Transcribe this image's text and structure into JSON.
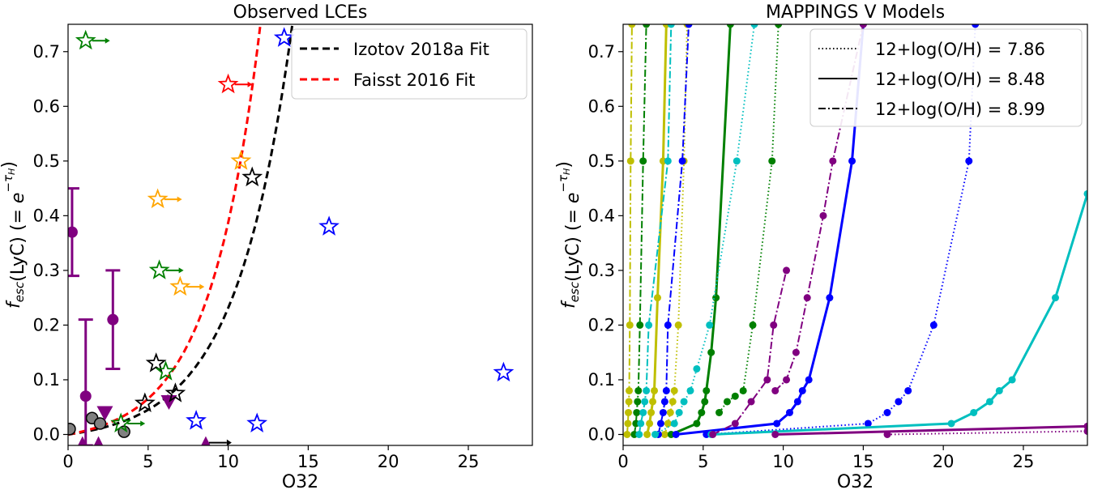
{
  "chart_data": [
    {
      "type": "scatter",
      "title": "Observed LCEs",
      "xlabel": "O32",
      "ylabel": "f_esc(LyC) (= e^-τH)",
      "xlim": [
        0,
        29
      ],
      "ylim": [
        -0.02,
        0.75
      ],
      "xticks": [
        "0",
        "5",
        "10",
        "15",
        "20",
        "25"
      ],
      "yticks": [
        "0.0",
        "0.1",
        "0.2",
        "0.3",
        "0.4",
        "0.5",
        "0.6",
        "0.7"
      ],
      "legend_position": "top-right",
      "fits": [
        {
          "name": "Izotov 2018a Fit",
          "color": "#000000",
          "form": "exp",
          "a": 0.0145,
          "b": 0.283
        },
        {
          "name": "Faisst 2016 Fit",
          "color": "#ff0000",
          "form": "exp",
          "a": 0.0168,
          "b": 0.318
        }
      ],
      "stars": [
        {
          "x": 1.1,
          "y": 0.72,
          "color": "#008000",
          "arrow": true
        },
        {
          "x": 10.0,
          "y": 0.64,
          "color": "#ff0000",
          "arrow": true
        },
        {
          "x": 13.5,
          "y": 0.725,
          "color": "#0000ff",
          "arrow": false
        },
        {
          "x": 10.8,
          "y": 0.5,
          "color": "#ffa500",
          "arrow": false
        },
        {
          "x": 11.5,
          "y": 0.47,
          "color": "#000000",
          "arrow": false
        },
        {
          "x": 5.6,
          "y": 0.43,
          "color": "#ffa500",
          "arrow": true
        },
        {
          "x": 16.3,
          "y": 0.38,
          "color": "#0000ff",
          "arrow": false
        },
        {
          "x": 5.7,
          "y": 0.3,
          "color": "#008000",
          "arrow": true
        },
        {
          "x": 7.0,
          "y": 0.27,
          "color": "#ffa500",
          "arrow": true
        },
        {
          "x": 5.5,
          "y": 0.13,
          "color": "#000000",
          "arrow": false
        },
        {
          "x": 6.1,
          "y": 0.115,
          "color": "#008000",
          "arrow": false
        },
        {
          "x": 6.7,
          "y": 0.075,
          "color": "#000000",
          "arrow": false
        },
        {
          "x": 4.8,
          "y": 0.057,
          "color": "#000000",
          "arrow": false
        },
        {
          "x": 3.3,
          "y": 0.02,
          "color": "#008000",
          "arrow": true
        },
        {
          "x": 8.0,
          "y": 0.025,
          "color": "#0000ff",
          "arrow": false
        },
        {
          "x": 11.8,
          "y": 0.02,
          "color": "#0000ff",
          "arrow": false
        },
        {
          "x": 27.2,
          "y": 0.113,
          "color": "#0000ff",
          "arrow": false
        }
      ],
      "gray_circles": [
        {
          "x": 0.1,
          "y": 0.01
        },
        {
          "x": 1.5,
          "y": 0.03
        },
        {
          "x": 2.0,
          "y": 0.02
        },
        {
          "x": 3.5,
          "y": 0.005
        }
      ],
      "purple_errorbars": [
        {
          "x": 0.25,
          "y": 0.37,
          "lo": 0.29,
          "hi": 0.45
        },
        {
          "x": 2.8,
          "y": 0.21,
          "lo": 0.12,
          "hi": 0.3
        },
        {
          "x": 1.1,
          "y": 0.07,
          "lo": -0.02,
          "hi": 0.21
        }
      ],
      "purple_triangles_down": [
        {
          "x": 2.3,
          "y": 0.04
        },
        {
          "x": 6.3,
          "y": 0.06
        }
      ],
      "purple_triangles_up": [
        {
          "x": 0.9,
          "y": -0.015
        },
        {
          "x": 1.9,
          "y": -0.015
        },
        {
          "x": 8.6,
          "y": -0.015
        }
      ],
      "black_arrow_point": {
        "x": 8.8,
        "y": -0.015
      }
    },
    {
      "type": "line",
      "title": "MAPPINGS V Models",
      "xlabel": "O32",
      "ylabel": "f_esc(LyC) (= e^-τH)",
      "xlim": [
        0,
        29
      ],
      "ylim": [
        -0.02,
        0.75
      ],
      "xticks": [
        "0",
        "5",
        "10",
        "15",
        "20",
        "25"
      ],
      "yticks": [
        "0.0",
        "0.1",
        "0.2",
        "0.3",
        "0.4",
        "0.5",
        "0.6",
        "0.7"
      ],
      "legend_position": "top-right",
      "legend": [
        {
          "label": "12+log(O/H) = 7.86",
          "dash": "dotted"
        },
        {
          "label": "12+log(O/H) = 8.48",
          "dash": "solid"
        },
        {
          "label": "12+log(O/H) = 8.99",
          "dash": "dashdot"
        }
      ],
      "series": [
        {
          "color": "#bfbf00",
          "dash": "dashdot",
          "points": [
            [
              0.25,
              0
            ],
            [
              0.3,
              0.02
            ],
            [
              0.33,
              0.04
            ],
            [
              0.36,
              0.06
            ],
            [
              0.38,
              0.08
            ],
            [
              0.42,
              0.2
            ],
            [
              0.47,
              0.5
            ],
            [
              0.55,
              0.75
            ]
          ]
        },
        {
          "color": "#bfbf00",
          "dash": "solid",
          "points": [
            [
              1.5,
              0
            ],
            [
              1.65,
              0.02
            ],
            [
              1.75,
              0.04
            ],
            [
              1.85,
              0.06
            ],
            [
              1.95,
              0.08
            ],
            [
              2.15,
              0.25
            ],
            [
              2.5,
              0.5
            ],
            [
              2.7,
              0.75
            ]
          ]
        },
        {
          "color": "#bfbf00",
          "dash": "dotted",
          "points": [
            [
              2.6,
              0
            ],
            [
              2.8,
              0.02
            ],
            [
              2.95,
              0.04
            ],
            [
              3.1,
              0.06
            ],
            [
              3.2,
              0.08
            ],
            [
              3.45,
              0.2
            ],
            [
              3.8,
              0.5
            ],
            [
              4.0,
              0.75
            ]
          ]
        },
        {
          "color": "#008000",
          "dash": "dashdot",
          "points": [
            [
              0.7,
              0
            ],
            [
              0.8,
              0.02
            ],
            [
              0.85,
              0.04
            ],
            [
              0.9,
              0.06
            ],
            [
              0.95,
              0.08
            ],
            [
              1.05,
              0.2
            ],
            [
              1.25,
              0.5
            ],
            [
              1.45,
              0.75
            ]
          ]
        },
        {
          "color": "#008000",
          "dash": "solid",
          "points": [
            [
              3.0,
              0
            ],
            [
              4.6,
              0.02
            ],
            [
              4.9,
              0.04
            ],
            [
              5.1,
              0.06
            ],
            [
              5.2,
              0.08
            ],
            [
              5.5,
              0.15
            ],
            [
              5.8,
              0.25
            ],
            [
              6.7,
              0.75
            ]
          ]
        },
        {
          "color": "#008000",
          "dash": "dotted",
          "points": [
            [
              6.0,
              0.04
            ],
            [
              6.5,
              0.06
            ],
            [
              7.0,
              0.07
            ],
            [
              7.5,
              0.08
            ],
            [
              8.1,
              0.2
            ],
            [
              9.3,
              0.5
            ],
            [
              9.7,
              0.75
            ]
          ]
        },
        {
          "color": "#0000ff",
          "dash": "dashdot",
          "points": [
            [
              2.2,
              0
            ],
            [
              2.35,
              0.02
            ],
            [
              2.5,
              0.04
            ],
            [
              2.6,
              0.06
            ],
            [
              2.7,
              0.08
            ],
            [
              2.8,
              0.2
            ],
            [
              3.7,
              0.5
            ],
            [
              4.1,
              0.75
            ]
          ]
        },
        {
          "color": "#0000ff",
          "dash": "solid",
          "points": [
            [
              3.3,
              0
            ],
            [
              9.6,
              0.02
            ],
            [
              10.4,
              0.04
            ],
            [
              10.9,
              0.06
            ],
            [
              11.2,
              0.08
            ],
            [
              11.6,
              0.1
            ],
            [
              12.9,
              0.25
            ],
            [
              14.3,
              0.5
            ],
            [
              15.0,
              0.75
            ]
          ]
        },
        {
          "color": "#0000ff",
          "dash": "dotted",
          "points": [
            [
              5.2,
              0
            ],
            [
              15.3,
              0.02
            ],
            [
              16.5,
              0.04
            ],
            [
              17.2,
              0.06
            ],
            [
              17.8,
              0.08
            ],
            [
              19.4,
              0.2
            ],
            [
              21.6,
              0.5
            ],
            [
              22.0,
              0.75
            ]
          ]
        },
        {
          "color": "#00bfbf",
          "dash": "dashdot",
          "points": [
            [
              1.0,
              0
            ],
            [
              1.1,
              0.02
            ],
            [
              1.25,
              0.04
            ],
            [
              1.35,
              0.06
            ],
            [
              1.45,
              0.08
            ],
            [
              1.6,
              0.2
            ],
            [
              2.8,
              0.5
            ],
            [
              3.0,
              0.75
            ]
          ]
        },
        {
          "color": "#00bfbf",
          "dash": "dotted",
          "points": [
            [
              2.0,
              0
            ],
            [
              3.2,
              0.02
            ],
            [
              3.5,
              0.04
            ],
            [
              3.8,
              0.06
            ],
            [
              4.2,
              0.08
            ],
            [
              4.6,
              0.12
            ],
            [
              5.4,
              0.2
            ],
            [
              7.1,
              0.5
            ],
            [
              8.2,
              0.75
            ]
          ]
        },
        {
          "color": "#00bfbf",
          "dash": "solid",
          "points": [
            [
              5.5,
              0
            ],
            [
              20.5,
              0.02
            ],
            [
              21.9,
              0.04
            ],
            [
              22.9,
              0.06
            ],
            [
              23.5,
              0.08
            ],
            [
              24.3,
              0.1
            ],
            [
              27.0,
              0.25
            ],
            [
              29.0,
              0.44
            ]
          ]
        },
        {
          "color": "#800080",
          "dash": "dashdot",
          "points": [
            [
              9.5,
              0.08
            ],
            [
              10.2,
              0.1
            ],
            [
              10.8,
              0.15
            ],
            [
              11.5,
              0.25
            ],
            [
              12.5,
              0.4
            ],
            [
              13.1,
              0.5
            ],
            [
              15.0,
              0.75
            ]
          ]
        },
        {
          "color": "#800080",
          "dash": "dashdot",
          "points": [
            [
              5.6,
              0
            ],
            [
              7.0,
              0.02
            ],
            [
              8.0,
              0.06
            ],
            [
              9.0,
              0.1
            ],
            [
              9.4,
              0.2
            ],
            [
              10.2,
              0.3
            ]
          ]
        },
        {
          "color": "#800080",
          "dash": "solid",
          "points": [
            [
              9.5,
              0
            ],
            [
              29.0,
              0.015
            ]
          ]
        },
        {
          "color": "#800080",
          "dash": "dotted",
          "points": [
            [
              16.5,
              0
            ],
            [
              29.0,
              0.006
            ]
          ]
        }
      ]
    }
  ]
}
